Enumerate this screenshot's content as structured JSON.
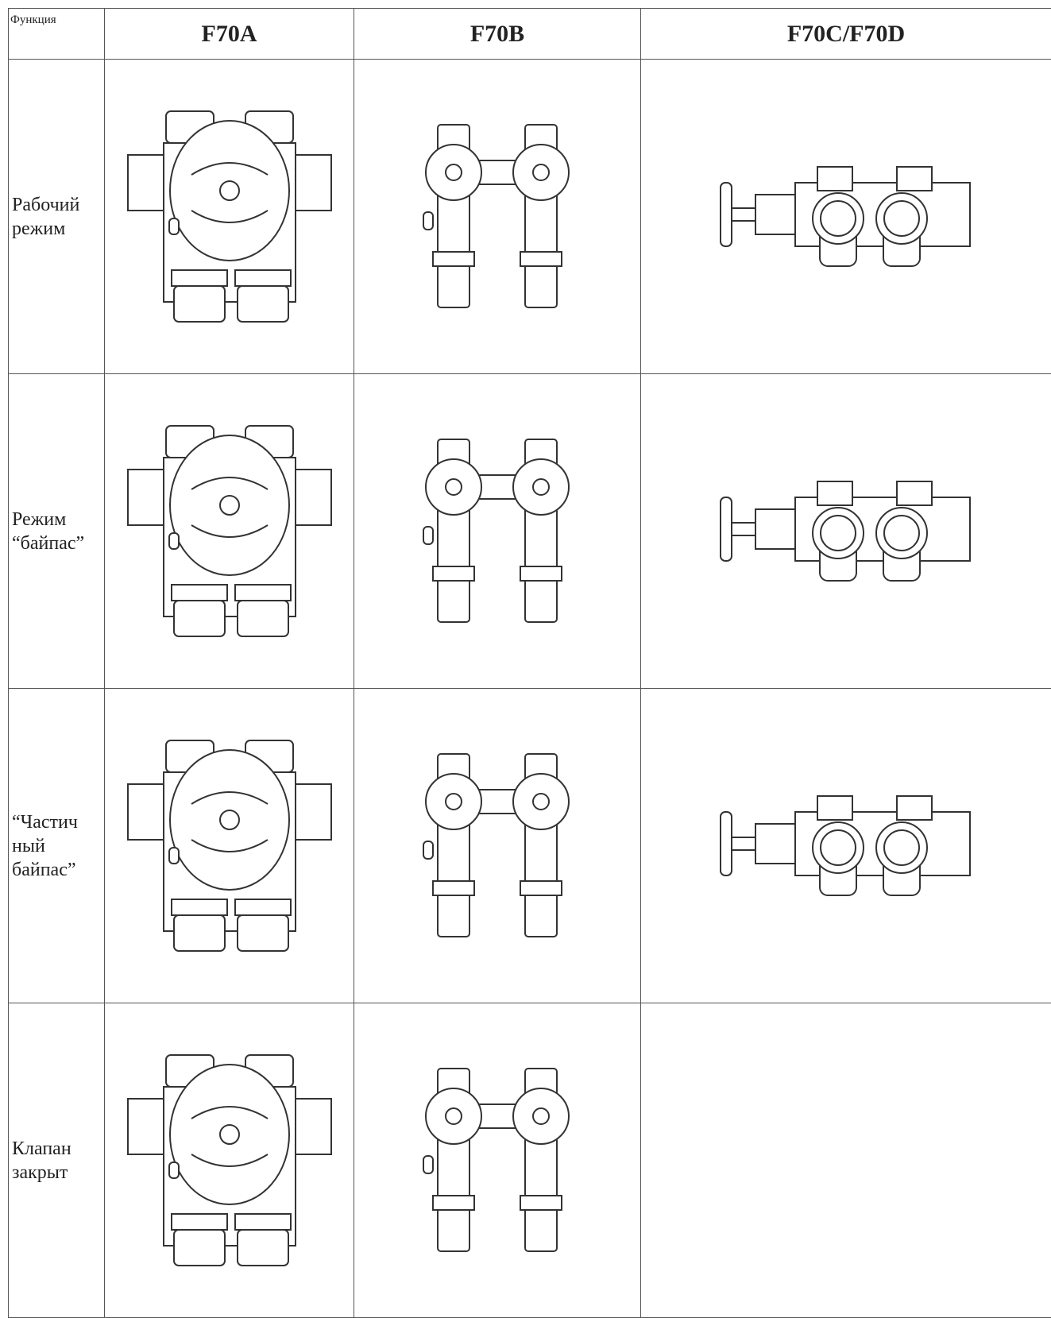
{
  "table": {
    "header": [
      "Функция",
      "F70A",
      "F70B",
      "F70C/F70D"
    ],
    "rows": [
      {
        "label": "Рабочий\nрежим"
      },
      {
        "label": "Режим\n“байпас”"
      },
      {
        "label": "“Частич\nный\nбайпас”"
      },
      {
        "label": "Клапан\nзакрыт"
      }
    ]
  }
}
